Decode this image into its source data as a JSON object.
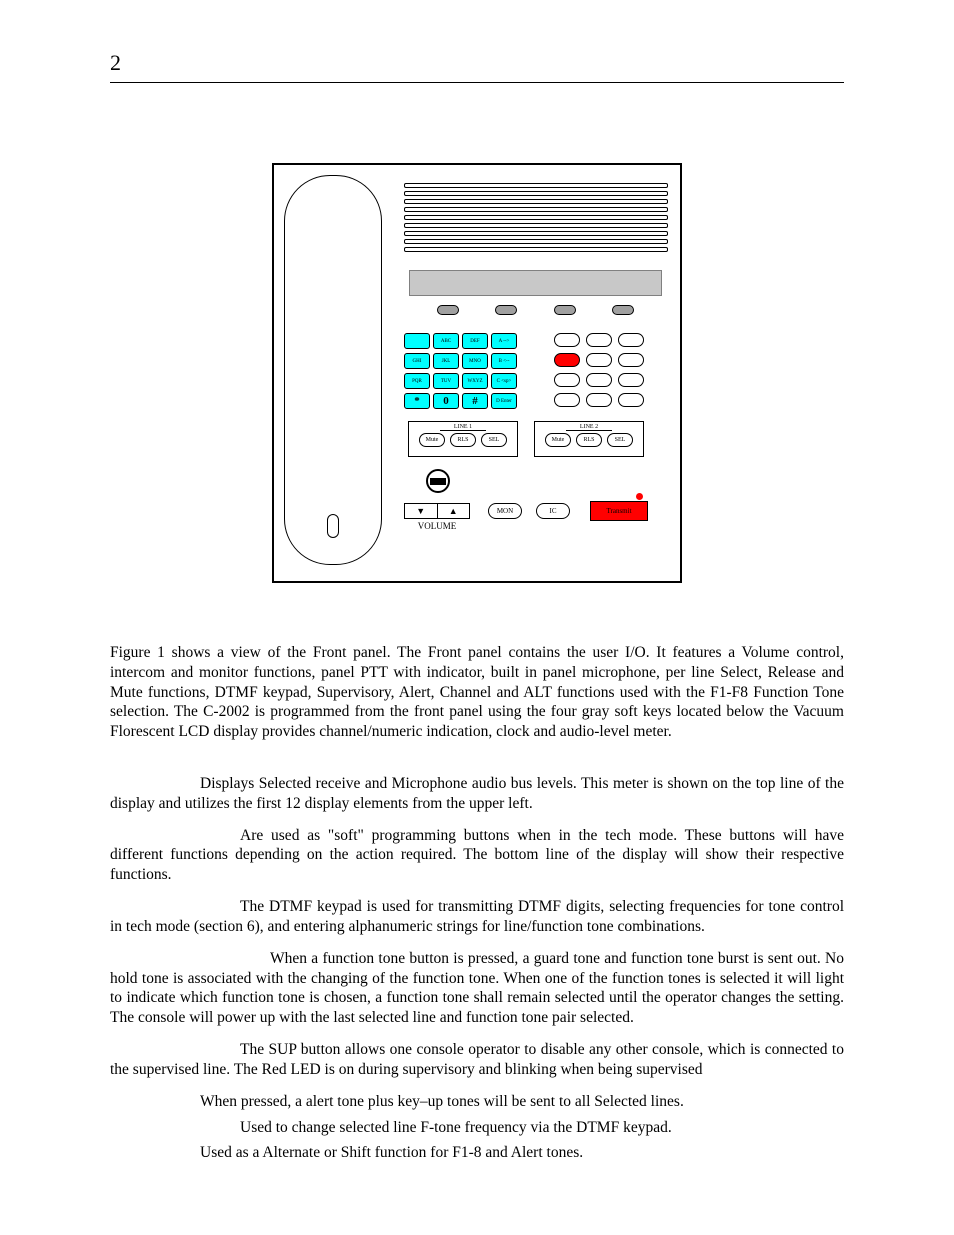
{
  "page_number": "2",
  "figure": {
    "grille_lines": 9,
    "softkeys_count": 4,
    "keypad": [
      [
        "",
        "ABC",
        "DEF",
        "A\n-->"
      ],
      [
        "GHI",
        "JKL",
        "MNO",
        "B\n<--"
      ],
      [
        "PQR",
        "TUV",
        "WXYZ",
        "C\n<sp>"
      ],
      [
        "*",
        "0",
        "#",
        "D\nEnter"
      ]
    ],
    "keypad_colors": {
      "cyan_rows": [
        [
          0,
          0
        ],
        [
          0,
          1
        ],
        [
          0,
          2
        ],
        [
          0,
          3
        ],
        [
          1,
          0
        ],
        [
          1,
          1
        ],
        [
          1,
          2
        ],
        [
          1,
          3
        ],
        [
          2,
          0
        ],
        [
          2,
          1
        ],
        [
          2,
          2
        ],
        [
          2,
          3
        ],
        [
          3,
          0
        ],
        [
          3,
          1
        ],
        [
          3,
          2
        ],
        [
          3,
          3
        ]
      ]
    },
    "ftone_red_index": 3,
    "line1": {
      "title": "LINE 1",
      "buttons": [
        "Mute",
        "RLS",
        "SEL"
      ]
    },
    "line2": {
      "title": "LINE 2",
      "buttons": [
        "Mute",
        "RLS",
        "SEL"
      ]
    },
    "volume_label": "VOLUME",
    "vol_down": "▼",
    "vol_up": "▲",
    "mon": "MON",
    "ic": "IC",
    "transmit": "Transmit"
  },
  "paragraphs": {
    "p0": "Figure 1 shows a view of the Front panel.  The Front panel contains the user I/O. It features a Volume control, intercom and monitor functions, panel PTT with indicator, built in panel microphone, per line Select, Release and Mute functions, DTMF keypad, Supervisory, Alert, Channel and ALT functions used with the F1-F8 Function Tone selection.  The C-2002 is programmed from the front panel using the four gray soft keys located below the Vacuum Florescent LCD display provides channel/numeric indication, clock and audio-level meter.",
    "p1": "Displays Selected receive and Microphone audio bus levels.  This meter is shown on the top line of the display and utilizes the first 12 display elements from the upper left.",
    "p2": "Are used as \"soft\" programming buttons when in the tech mode.  These buttons will have different functions depending on the action required.  The bottom line of the display will show their respective functions.",
    "p3": "The DTMF keypad is used for transmitting DTMF digits, selecting frequencies for tone control in tech mode (section 6), and entering alphanumeric strings for line/function tone combinations.",
    "p4": "When a function tone button is pressed, a guard tone and function tone burst is sent out.  No hold tone is associated with the changing of the function tone.  When one of the function tones is selected it will light to indicate which function tone is chosen, a function tone shall remain selected until the operator changes the setting.  The console will power up with the last selected line and function tone pair selected.",
    "p5": "The SUP button allows one console operator to disable any other console, which is connected to the supervised line.  The Red LED is on during supervisory and blinking when being supervised",
    "p6": "When pressed, a alert tone plus key–up tones will be sent to all Selected lines.",
    "p7": "Used to change selected line F-tone frequency via the DTMF keypad.",
    "p8": "Used as a Alternate or Shift function for F1-8 and Alert tones."
  },
  "colors": {
    "cyan": "#00ffff",
    "red": "#ff0000",
    "lcd": "#c8c8c8",
    "softkey": "#a0a0a0"
  }
}
